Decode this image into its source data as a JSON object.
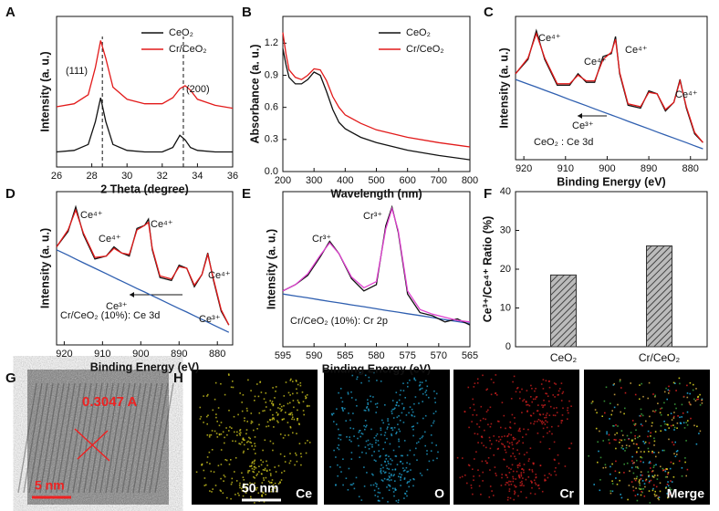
{
  "chart_data": [
    {
      "label": "A",
      "type": "line",
      "xlabel": "2 Theta (degree)",
      "ylabel": "Intensity (a. u.)",
      "xlim": [
        26,
        36
      ],
      "xticks": [
        26,
        28,
        30,
        32,
        34,
        36
      ],
      "ylim": [
        0,
        10
      ],
      "legend": "upper right",
      "x": [
        26,
        27,
        27.8,
        28.2,
        28.5,
        28.8,
        29.2,
        30,
        31,
        32,
        32.6,
        33,
        33.3,
        33.6,
        34,
        35,
        36
      ],
      "series": [
        {
          "name": "CeO₂",
          "color": "#111111",
          "values": [
            1.0,
            1.1,
            1.5,
            3.0,
            4.6,
            3.0,
            1.5,
            1.1,
            1.0,
            1.0,
            1.3,
            2.1,
            1.8,
            1.3,
            1.1,
            1.0,
            1.0
          ]
        },
        {
          "name": "Cr/CeO₂",
          "color": "#e21a1a",
          "values": [
            4.0,
            4.2,
            4.8,
            6.6,
            8.4,
            7.2,
            5.3,
            4.5,
            4.2,
            4.2,
            4.6,
            5.2,
            5.4,
            5.1,
            4.5,
            4.1,
            3.9
          ]
        }
      ],
      "vlines": [
        28.6,
        33.2
      ],
      "annotations": [
        "(111)",
        "(200)"
      ]
    },
    {
      "label": "B",
      "type": "line",
      "xlabel": "Wavelength (nm)",
      "ylabel": "Absorbance (a. u.)",
      "xlim": [
        200,
        800
      ],
      "xticks": [
        200,
        300,
        400,
        500,
        600,
        700,
        800
      ],
      "ylim": [
        0,
        1.45
      ],
      "yticks": [
        {
          "value": 0,
          "label": "0.0"
        },
        0.3,
        0.6,
        0.9,
        1.2
      ],
      "legend": "upper right",
      "x": [
        200,
        210,
        220,
        240,
        260,
        280,
        300,
        320,
        340,
        360,
        380,
        400,
        450,
        500,
        600,
        700,
        800
      ],
      "series": [
        {
          "name": "CeO₂",
          "color": "#111111",
          "values": [
            1.15,
            1.0,
            0.88,
            0.82,
            0.82,
            0.86,
            0.93,
            0.9,
            0.75,
            0.58,
            0.46,
            0.4,
            0.32,
            0.27,
            0.2,
            0.15,
            0.11
          ]
        },
        {
          "name": "Cr/CeO₂",
          "color": "#e21a1a",
          "values": [
            1.3,
            1.1,
            0.95,
            0.88,
            0.86,
            0.9,
            0.96,
            0.95,
            0.85,
            0.7,
            0.6,
            0.53,
            0.45,
            0.39,
            0.32,
            0.27,
            0.23
          ]
        }
      ]
    },
    {
      "label": "C",
      "type": "line",
      "xlabel": "Binding Energy (eV)",
      "ylabel": "Intensity (a. u.)",
      "xlim": [
        922,
        876
      ],
      "xticks": [
        920,
        910,
        900,
        890,
        880
      ],
      "ylim": [
        0,
        10
      ],
      "x": [
        922,
        919,
        917,
        915,
        912,
        909,
        907,
        905,
        903,
        901,
        899,
        898,
        897,
        895,
        892,
        890,
        888,
        886,
        884,
        882.5,
        881,
        879,
        877
      ],
      "series": [
        {
          "color": "#2f5fb0",
          "values": [
            5.6,
            5.28,
            5.07,
            4.85,
            4.53,
            4.19,
            3.98,
            3.77,
            3.55,
            3.33,
            3.12,
            3.01,
            2.91,
            2.68,
            2.36,
            2.15,
            1.93,
            1.72,
            1.51,
            1.35,
            1.19,
            0.97,
            0.76
          ]
        },
        {
          "color": "#111111",
          "values": [
            6.0,
            7.0,
            9.0,
            7.0,
            5.2,
            5.2,
            6.0,
            5.4,
            5.4,
            7.2,
            7.4,
            8.6,
            6.0,
            3.8,
            3.6,
            4.8,
            4.6,
            3.4,
            4.0,
            5.6,
            3.6,
            1.8,
            1.2
          ]
        },
        {
          "color": "#e21a1a",
          "values": [
            6.0,
            7.1,
            8.8,
            7.1,
            5.3,
            5.3,
            5.9,
            5.5,
            5.5,
            7.0,
            7.5,
            8.4,
            6.1,
            3.9,
            3.7,
            4.7,
            4.6,
            3.5,
            4.0,
            5.5,
            3.7,
            1.9,
            1.2
          ]
        }
      ],
      "annotations": [
        "Ce⁴⁺",
        "Ce⁴⁺",
        "Ce⁴⁺",
        "Ce⁴⁺",
        "Ce³⁺",
        "CeO₂ : Ce 3d"
      ]
    },
    {
      "label": "D",
      "type": "line",
      "xlabel": "Binding Energy (eV)",
      "ylabel": "Intensity (a. u.)",
      "xlim": [
        922,
        876
      ],
      "xticks": [
        920,
        910,
        900,
        890,
        880
      ],
      "ylim": [
        0,
        10
      ],
      "x": [
        922,
        919,
        917,
        915,
        912,
        909,
        907,
        905,
        903,
        901,
        899,
        898,
        897,
        895,
        892,
        890,
        888,
        886,
        884,
        882.5,
        881,
        879,
        877
      ],
      "series": [
        {
          "color": "#2f5fb0",
          "values": [
            6.2,
            5.85,
            5.6,
            5.36,
            5.0,
            4.65,
            4.4,
            4.16,
            3.92,
            3.68,
            3.45,
            3.33,
            3.21,
            2.97,
            2.61,
            2.37,
            2.14,
            1.9,
            1.66,
            1.48,
            1.3,
            1.06,
            0.82
          ]
        },
        {
          "color": "#111111",
          "values": [
            6.4,
            7.4,
            9.0,
            7.2,
            5.6,
            5.8,
            6.4,
            6.0,
            5.8,
            7.6,
            7.8,
            8.2,
            6.2,
            4.4,
            4.2,
            5.2,
            5.0,
            3.8,
            4.6,
            6.0,
            4.2,
            2.2,
            1.3
          ]
        },
        {
          "color": "#e21a1a",
          "values": [
            6.4,
            7.5,
            8.8,
            7.3,
            5.7,
            5.8,
            6.3,
            6.0,
            5.9,
            7.5,
            7.8,
            8.0,
            6.3,
            4.5,
            4.3,
            5.1,
            5.0,
            3.9,
            4.6,
            5.9,
            4.3,
            2.3,
            1.3
          ]
        }
      ],
      "annotations": [
        "Ce⁴⁺",
        "Ce⁴⁺",
        "Ce⁴⁺",
        "Ce⁴⁺",
        "Ce³⁺",
        "Ce³⁺",
        "Cr/CeO₂ (10%): Ce 3d"
      ]
    },
    {
      "label": "E",
      "type": "line",
      "xlabel": "Binding Energy (eV)",
      "ylabel": "Intensity (a. u.)",
      "xlim": [
        595,
        565
      ],
      "xticks": [
        595,
        590,
        585,
        580,
        575,
        570,
        565
      ],
      "ylim": [
        0,
        10
      ],
      "x": [
        595,
        593,
        591,
        589,
        587.5,
        586,
        584,
        582,
        580,
        578.5,
        577.5,
        576.5,
        575,
        573,
        571,
        569,
        567,
        565
      ],
      "series": [
        {
          "color": "#2f5fb0",
          "values": [
            3.4,
            3.27,
            3.15,
            3.02,
            2.92,
            2.83,
            2.7,
            2.58,
            2.45,
            2.35,
            2.29,
            2.23,
            2.13,
            2.01,
            1.88,
            1.75,
            1.63,
            1.5
          ]
        },
        {
          "color": "#111111",
          "values": [
            3.6,
            4.0,
            4.6,
            5.8,
            6.8,
            6.0,
            4.4,
            3.6,
            4.0,
            7.8,
            9.0,
            7.4,
            3.4,
            2.2,
            2.0,
            1.6,
            1.8,
            1.4
          ]
        },
        {
          "color": "#e040d0",
          "values": [
            3.6,
            4.0,
            4.7,
            5.9,
            6.7,
            6.0,
            4.5,
            3.8,
            4.2,
            7.6,
            8.9,
            7.5,
            3.6,
            2.4,
            2.1,
            1.9,
            1.7,
            1.6
          ]
        }
      ],
      "annotations": [
        "Cr³⁺",
        "Cr³⁺",
        "Cr/CeO₂ (10%): Cr 2p"
      ]
    },
    {
      "label": "F",
      "type": "bar",
      "ylabel": "Ce³⁺/Ce⁴⁺ Ratio (%)",
      "categories": [
        "CeO₂",
        "Cr/CeO₂"
      ],
      "values": [
        18.5,
        26
      ],
      "ylim": [
        0,
        40
      ],
      "yticks": [
        0,
        10,
        20,
        30,
        40
      ]
    }
  ],
  "images": [
    {
      "label": "G",
      "annotation": "0.3047 A",
      "scale_bar": "5 nm"
    },
    {
      "label": "H",
      "scale_bar": "50 nm",
      "maps": [
        "Ce",
        "O",
        "Cr",
        "Merge"
      ]
    }
  ]
}
